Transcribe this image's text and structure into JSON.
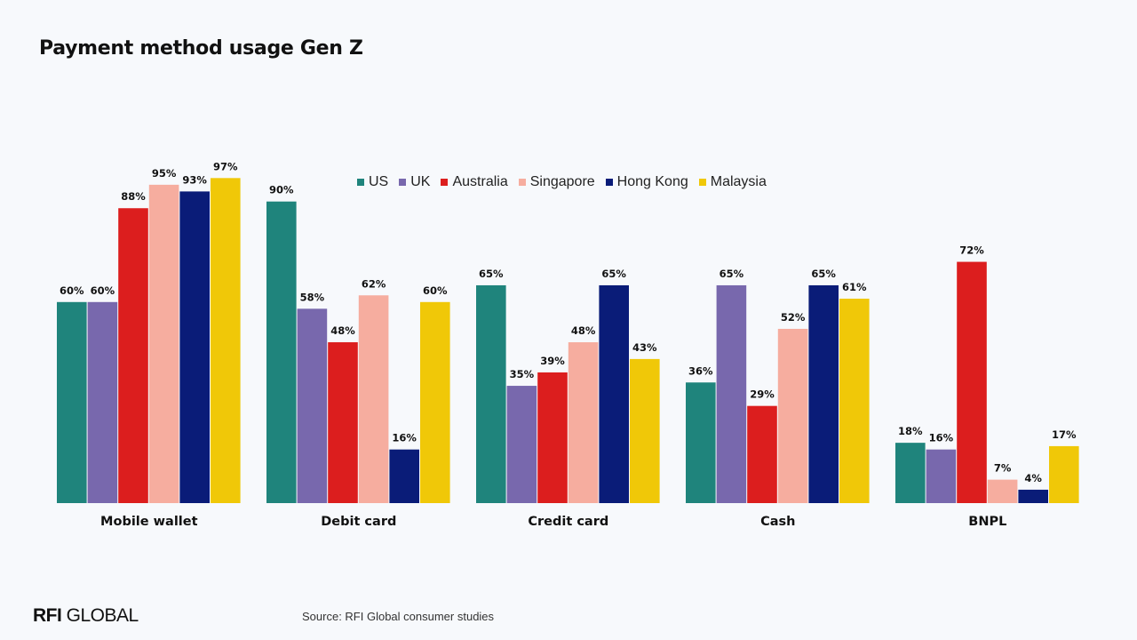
{
  "header": {
    "title": "Payment method usage Gen Z"
  },
  "footer": {
    "logo_bold": "RFI",
    "logo_rest": "GLOBAL",
    "source": "Source: RFI Global consumer studies"
  },
  "chart_data": {
    "type": "bar",
    "title": "Payment method usage Gen Z",
    "xlabel": "",
    "ylabel": "",
    "ylim": [
      0,
      100
    ],
    "grid": false,
    "legend_position": "top-center",
    "value_format": "percent",
    "categories": [
      "Mobile wallet",
      "Debit card",
      "Credit card",
      "Cash",
      "BNPL"
    ],
    "series": [
      {
        "name": "US",
        "color": "#1f847c",
        "values": [
          60,
          90,
          65,
          36,
          18
        ]
      },
      {
        "name": "UK",
        "color": "#7868ad",
        "values": [
          60,
          58,
          35,
          65,
          16
        ]
      },
      {
        "name": "Australia",
        "color": "#dc1e1e",
        "values": [
          88,
          48,
          39,
          29,
          72
        ]
      },
      {
        "name": "Singapore",
        "color": "#f6ad9f",
        "values": [
          95,
          62,
          48,
          52,
          7
        ]
      },
      {
        "name": "Hong Kong",
        "color": "#0a1c78",
        "values": [
          93,
          16,
          65,
          65,
          4
        ]
      },
      {
        "name": "Malaysia",
        "color": "#f0c808",
        "values": [
          97,
          60,
          43,
          61,
          17
        ]
      }
    ]
  }
}
